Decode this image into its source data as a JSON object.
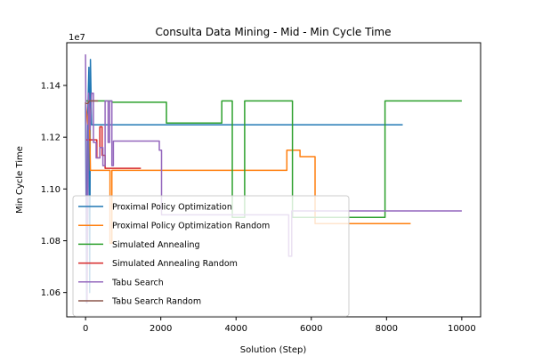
{
  "chart_data": {
    "type": "line",
    "title": "Consulta Data Mining - Mid - Min Cycle Time",
    "xlabel": "Solution (Step)",
    "ylabel": "Min Cycle Time",
    "y_offset_label": "1e7",
    "xlim": [
      -500,
      10500
    ],
    "ylim": [
      1.0506,
      1.1565
    ],
    "x_ticks": [
      0,
      2000,
      4000,
      6000,
      8000,
      10000
    ],
    "x_tick_labels": [
      "0",
      "2000",
      "4000",
      "6000",
      "8000",
      "10000"
    ],
    "y_ticks": [
      1.06,
      1.08,
      1.1,
      1.12,
      1.14
    ],
    "y_tick_labels": [
      "1.06",
      "1.08",
      "1.10",
      "1.12",
      "1.14"
    ],
    "legend_position": "lower-left",
    "series": [
      {
        "name": "Proximal Policy Optimization",
        "color": "#1f77b4",
        "points": [
          [
            0,
            1.1335
          ],
          [
            30,
            1.056
          ],
          [
            60,
            1.13
          ],
          [
            90,
            1.147
          ],
          [
            110,
            1.06
          ],
          [
            130,
            1.15
          ],
          [
            160,
            1.1248
          ],
          [
            8430,
            1.1248
          ]
        ]
      },
      {
        "name": "Proximal Policy Optimization Random",
        "color": "#ff7f0e",
        "points": [
          [
            0,
            1.1335
          ],
          [
            60,
            1.125
          ],
          [
            100,
            1.131
          ],
          [
            130,
            1.1072
          ],
          [
            650,
            1.1072
          ],
          [
            650,
            1.079
          ],
          [
            700,
            1.079
          ],
          [
            700,
            1.1072
          ],
          [
            5350,
            1.1072
          ],
          [
            5350,
            1.115
          ],
          [
            5700,
            1.115
          ],
          [
            5700,
            1.1125
          ],
          [
            6100,
            1.1125
          ],
          [
            6100,
            1.0866
          ],
          [
            8640,
            1.0866
          ]
        ]
      },
      {
        "name": "Simulated Annealing",
        "color": "#2ca02c",
        "points": [
          [
            0,
            1.134
          ],
          [
            700,
            1.134
          ],
          [
            700,
            1.1335
          ],
          [
            2150,
            1.1335
          ],
          [
            2150,
            1.1255
          ],
          [
            3620,
            1.1255
          ],
          [
            3620,
            1.134
          ],
          [
            3900,
            1.134
          ],
          [
            3900,
            1.089
          ],
          [
            4230,
            1.089
          ],
          [
            4230,
            1.134
          ],
          [
            5500,
            1.134
          ],
          [
            5500,
            1.089
          ],
          [
            7960,
            1.089
          ],
          [
            7960,
            1.134
          ],
          [
            10000,
            1.134
          ]
        ]
      },
      {
        "name": "Simulated Annealing Random",
        "color": "#d62728",
        "points": [
          [
            0,
            1.119
          ],
          [
            300,
            1.119
          ],
          [
            300,
            1.112
          ],
          [
            380,
            1.112
          ],
          [
            380,
            1.124
          ],
          [
            440,
            1.124
          ],
          [
            440,
            1.113
          ],
          [
            520,
            1.113
          ],
          [
            520,
            1.108
          ],
          [
            1470,
            1.108
          ]
        ]
      },
      {
        "name": "Tabu Search",
        "color": "#9467bd",
        "points": [
          [
            0,
            1.152
          ],
          [
            40,
            1.056
          ],
          [
            80,
            1.137
          ],
          [
            120,
            1.123
          ],
          [
            160,
            1.137
          ],
          [
            210,
            1.137
          ],
          [
            210,
            1.118
          ],
          [
            280,
            1.118
          ],
          [
            280,
            1.112
          ],
          [
            380,
            1.112
          ],
          [
            380,
            1.116
          ],
          [
            460,
            1.116
          ],
          [
            460,
            1.109
          ],
          [
            520,
            1.109
          ],
          [
            520,
            1.134
          ],
          [
            600,
            1.134
          ],
          [
            600,
            1.118
          ],
          [
            640,
            1.118
          ],
          [
            640,
            1.134
          ],
          [
            700,
            1.134
          ],
          [
            700,
            1.109
          ],
          [
            740,
            1.109
          ],
          [
            740,
            1.1185
          ],
          [
            1960,
            1.1185
          ],
          [
            1960,
            1.115
          ],
          [
            2020,
            1.115
          ],
          [
            2020,
            1.09
          ],
          [
            5400,
            1.09
          ],
          [
            5400,
            1.074
          ],
          [
            5480,
            1.074
          ],
          [
            5480,
            1.0915
          ],
          [
            10000,
            1.0915
          ]
        ]
      },
      {
        "name": "Tabu Search Random",
        "color": "#8c564b",
        "points": [
          [
            0,
            1.133
          ],
          [
            60,
            1.133
          ],
          [
            100,
            1.134
          ],
          [
            330,
            1.134
          ]
        ]
      }
    ]
  }
}
